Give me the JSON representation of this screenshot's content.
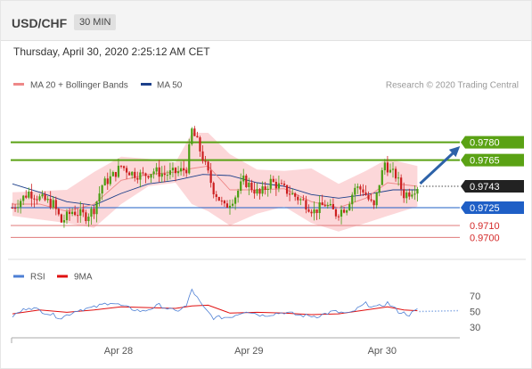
{
  "header": {
    "pair": "USD/CHF",
    "timeframe": "30 MIN"
  },
  "timestamp": "Thursday, April 30, 2020 2:25:12 AM CET",
  "legend": {
    "bollinger": "MA 20 + Bollinger Bands",
    "ma50": "MA 50",
    "credit": "Research © 2020 Trading Central"
  },
  "rsi_legend": {
    "rsi": "RSI",
    "ma9": "9MA"
  },
  "colors": {
    "candle_up": "#4a9e12",
    "candle_down": "#cc1f1f",
    "band_fill": "#fbd0d2",
    "ma20": "#ee8888",
    "ma50": "#1c3f8a",
    "resistance": "#5aa214",
    "support": "#1f5fc6",
    "support_secondary": "#e07a7a",
    "forecast_arrow": "#2d62a8",
    "price_tag": "#222222",
    "rsi": "#4d7fd4",
    "rsi_ma": "#e01010"
  },
  "chart_data": [
    {
      "type": "candlestick",
      "instrument": "USD/CHF",
      "interval": "30 MIN",
      "ylim": [
        0.9689,
        0.9815
      ],
      "x_ticks": [
        {
          "label": "Apr 28",
          "index": 39
        },
        {
          "label": "Apr 29",
          "index": 87
        },
        {
          "label": "Apr 30",
          "index": 136
        }
      ],
      "levels": [
        {
          "label": "0.9780",
          "value": 0.978,
          "kind": "resistance"
        },
        {
          "label": "0.9765",
          "value": 0.9765,
          "kind": "resistance"
        },
        {
          "label": "0.9743",
          "value": 0.9743,
          "kind": "last"
        },
        {
          "label": "0.9725",
          "value": 0.9725,
          "kind": "support"
        },
        {
          "label": "0.9710",
          "value": 0.971,
          "kind": "support_secondary"
        },
        {
          "label": "0.9700",
          "value": 0.97,
          "kind": "support_secondary"
        }
      ],
      "price_path": [
        [
          0,
          0.9725
        ],
        [
          6,
          0.9738
        ],
        [
          10,
          0.9733
        ],
        [
          15,
          0.9728
        ],
        [
          18,
          0.9713
        ],
        [
          22,
          0.9722
        ],
        [
          27,
          0.9718
        ],
        [
          30,
          0.9724
        ],
        [
          33,
          0.9744
        ],
        [
          37,
          0.9752
        ],
        [
          40,
          0.976
        ],
        [
          44,
          0.9754
        ],
        [
          48,
          0.9752
        ],
        [
          52,
          0.9756
        ],
        [
          56,
          0.9753
        ],
        [
          61,
          0.9755
        ],
        [
          64,
          0.9758
        ],
        [
          66,
          0.979
        ],
        [
          68,
          0.978
        ],
        [
          71,
          0.976
        ],
        [
          74,
          0.974
        ],
        [
          78,
          0.9725
        ],
        [
          82,
          0.9735
        ],
        [
          85,
          0.9748
        ],
        [
          88,
          0.9742
        ],
        [
          91,
          0.9736
        ],
        [
          95,
          0.9747
        ],
        [
          99,
          0.9742
        ],
        [
          103,
          0.9736
        ],
        [
          107,
          0.973
        ],
        [
          111,
          0.9722
        ],
        [
          115,
          0.9728
        ],
        [
          119,
          0.972
        ],
        [
          123,
          0.9726
        ],
        [
          126,
          0.9742
        ],
        [
          129,
          0.974
        ],
        [
          131,
          0.9732
        ],
        [
          133,
          0.9725
        ],
        [
          135,
          0.9746
        ],
        [
          137,
          0.9763
        ],
        [
          139,
          0.9755
        ],
        [
          141,
          0.9752
        ],
        [
          144,
          0.9736
        ],
        [
          146,
          0.9738
        ],
        [
          149,
          0.9743
        ]
      ],
      "ma20_path": [
        [
          0,
          0.9728
        ],
        [
          10,
          0.9728
        ],
        [
          20,
          0.9722
        ],
        [
          30,
          0.9728
        ],
        [
          40,
          0.9748
        ],
        [
          50,
          0.9753
        ],
        [
          60,
          0.9755
        ],
        [
          66,
          0.9758
        ],
        [
          72,
          0.976
        ],
        [
          80,
          0.974
        ],
        [
          90,
          0.974
        ],
        [
          100,
          0.9741
        ],
        [
          110,
          0.973
        ],
        [
          120,
          0.9725
        ],
        [
          130,
          0.9733
        ],
        [
          138,
          0.9746
        ],
        [
          149,
          0.9743
        ]
      ],
      "bollinger_upper_path": [
        [
          0,
          0.9738
        ],
        [
          20,
          0.974
        ],
        [
          30,
          0.9755
        ],
        [
          40,
          0.9768
        ],
        [
          50,
          0.9766
        ],
        [
          60,
          0.9763
        ],
        [
          66,
          0.9788
        ],
        [
          72,
          0.9788
        ],
        [
          80,
          0.977
        ],
        [
          90,
          0.9757
        ],
        [
          100,
          0.9756
        ],
        [
          110,
          0.9758
        ],
        [
          120,
          0.9745
        ],
        [
          130,
          0.9756
        ],
        [
          138,
          0.9766
        ],
        [
          149,
          0.976
        ]
      ],
      "bollinger_lower_path": [
        [
          0,
          0.9718
        ],
        [
          20,
          0.9712
        ],
        [
          30,
          0.9708
        ],
        [
          40,
          0.9728
        ],
        [
          50,
          0.9743
        ],
        [
          60,
          0.9746
        ],
        [
          66,
          0.9728
        ],
        [
          72,
          0.9722
        ],
        [
          80,
          0.971
        ],
        [
          90,
          0.972
        ],
        [
          100,
          0.9726
        ],
        [
          110,
          0.9712
        ],
        [
          120,
          0.9705
        ],
        [
          130,
          0.9712
        ],
        [
          138,
          0.9718
        ],
        [
          149,
          0.9726
        ]
      ],
      "ma50_path": [
        [
          0,
          0.9745
        ],
        [
          10,
          0.9738
        ],
        [
          20,
          0.973
        ],
        [
          30,
          0.9727
        ],
        [
          40,
          0.9737
        ],
        [
          50,
          0.9745
        ],
        [
          60,
          0.9748
        ],
        [
          70,
          0.9753
        ],
        [
          80,
          0.9752
        ],
        [
          90,
          0.9746
        ],
        [
          100,
          0.9743
        ],
        [
          110,
          0.9736
        ],
        [
          120,
          0.9733
        ],
        [
          130,
          0.9736
        ],
        [
          140,
          0.974
        ],
        [
          149,
          0.974
        ]
      ],
      "forecast": {
        "from": [
          149,
          0.9743
        ],
        "to": [
          165,
          0.9779
        ]
      }
    },
    {
      "type": "line",
      "name": "RSI",
      "ylim": [
        20,
        80
      ],
      "y_ticks": [
        30,
        50,
        70
      ],
      "rsi_path": [
        [
          0,
          44
        ],
        [
          6,
          56
        ],
        [
          12,
          49
        ],
        [
          18,
          42
        ],
        [
          24,
          52
        ],
        [
          30,
          55
        ],
        [
          36,
          62
        ],
        [
          42,
          55
        ],
        [
          48,
          50
        ],
        [
          54,
          58
        ],
        [
          60,
          50
        ],
        [
          64,
          57
        ],
        [
          66,
          78
        ],
        [
          70,
          56
        ],
        [
          74,
          42
        ],
        [
          80,
          43
        ],
        [
          86,
          51
        ],
        [
          92,
          45
        ],
        [
          100,
          49
        ],
        [
          106,
          45
        ],
        [
          112,
          44
        ],
        [
          118,
          50
        ],
        [
          124,
          47
        ],
        [
          130,
          60
        ],
        [
          134,
          55
        ],
        [
          138,
          61
        ],
        [
          142,
          50
        ],
        [
          146,
          46
        ],
        [
          149,
          52
        ]
      ],
      "ma9_path": [
        [
          0,
          47
        ],
        [
          10,
          52
        ],
        [
          20,
          49
        ],
        [
          30,
          52
        ],
        [
          40,
          56
        ],
        [
          50,
          55
        ],
        [
          60,
          54
        ],
        [
          66,
          57
        ],
        [
          72,
          58
        ],
        [
          80,
          48
        ],
        [
          90,
          49
        ],
        [
          100,
          48
        ],
        [
          110,
          46
        ],
        [
          120,
          47
        ],
        [
          130,
          52
        ],
        [
          138,
          56
        ],
        [
          144,
          52
        ],
        [
          149,
          51
        ]
      ],
      "projection_value": 50
    }
  ]
}
